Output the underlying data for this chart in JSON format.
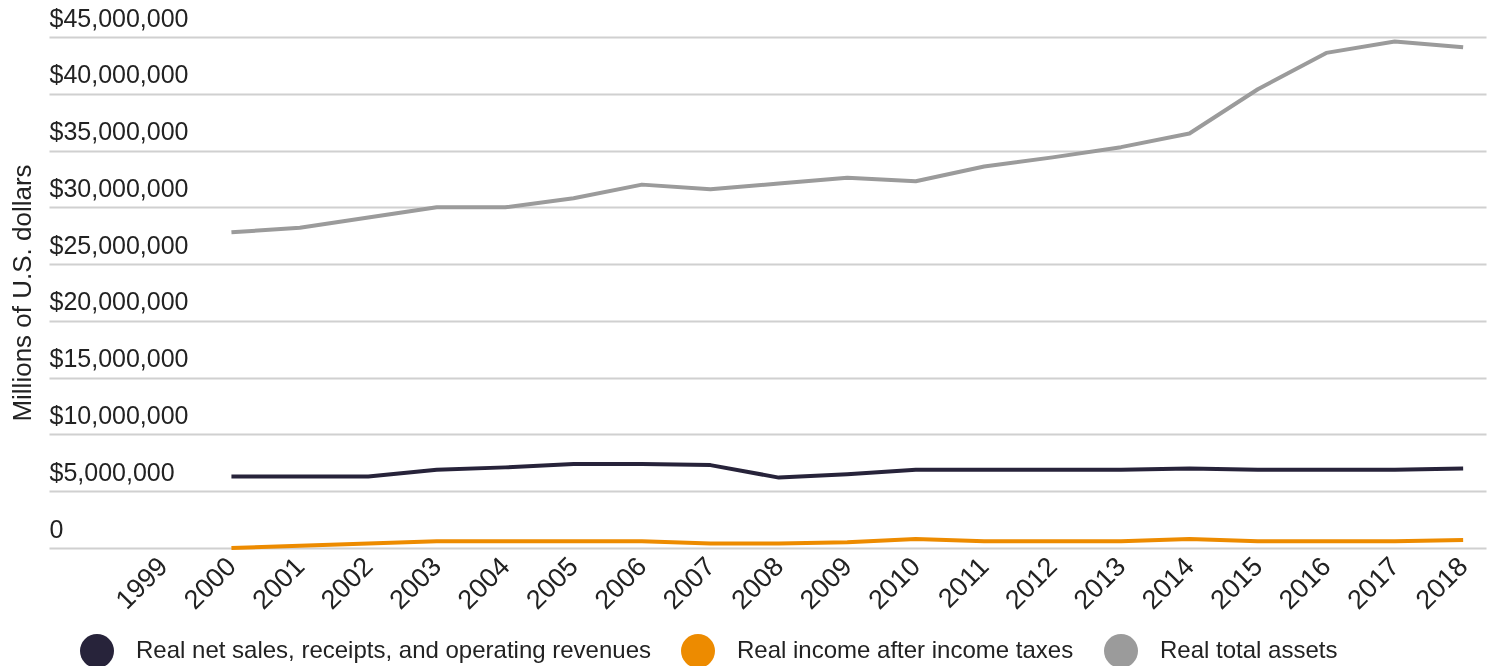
{
  "chart_data": {
    "type": "line",
    "ylabel": "Millions of U.S. dollars",
    "categories": [
      "1999",
      "2000",
      "2001",
      "2002",
      "2003",
      "2004",
      "2005",
      "2006",
      "2007",
      "2008",
      "2009",
      "2010",
      "2011",
      "2012",
      "2013",
      "2014",
      "2015",
      "2016",
      "2017",
      "2018"
    ],
    "series": [
      {
        "name": "Real net sales, receipts, and operating revenues",
        "color": "#27233a",
        "values": [
          null,
          6300000,
          6300000,
          6300000,
          6900000,
          7100000,
          7400000,
          7400000,
          7300000,
          6200000,
          6500000,
          6900000,
          6900000,
          6900000,
          6900000,
          7000000,
          6900000,
          6900000,
          6900000,
          7000000
        ]
      },
      {
        "name": "Real income after income taxes",
        "color": "#ed8b00",
        "values": [
          null,
          0,
          200000,
          400000,
          600000,
          600000,
          600000,
          600000,
          400000,
          400000,
          500000,
          800000,
          600000,
          600000,
          600000,
          800000,
          600000,
          600000,
          600000,
          700000
        ]
      },
      {
        "name": "Real total assets",
        "color": "#9b9b9b",
        "values": [
          null,
          27800000,
          28200000,
          29100000,
          30000000,
          30000000,
          30800000,
          32000000,
          31600000,
          32100000,
          32600000,
          32300000,
          33600000,
          34400000,
          35300000,
          36500000,
          40400000,
          43600000,
          44600000,
          44100000
        ]
      }
    ],
    "ylim": [
      0,
      45000000
    ],
    "yticks": [
      0,
      {
        "value": 5000000,
        "label": "$5,000,000"
      },
      {
        "value": 10000000,
        "label": "$10,000,000"
      },
      {
        "value": 15000000,
        "label": "$15,000,000"
      },
      {
        "value": 20000000,
        "label": "$20,000,000"
      },
      {
        "value": 25000000,
        "label": "$25,000,000"
      },
      {
        "value": 30000000,
        "label": "$30,000,000"
      },
      {
        "value": 35000000,
        "label": "$35,000,000"
      },
      {
        "value": 40000000,
        "label": "$40,000,000"
      },
      {
        "value": 45000000,
        "label": "$45,000,000"
      }
    ],
    "grid": "y",
    "legend": "bottom",
    "line_style": "solid"
  }
}
